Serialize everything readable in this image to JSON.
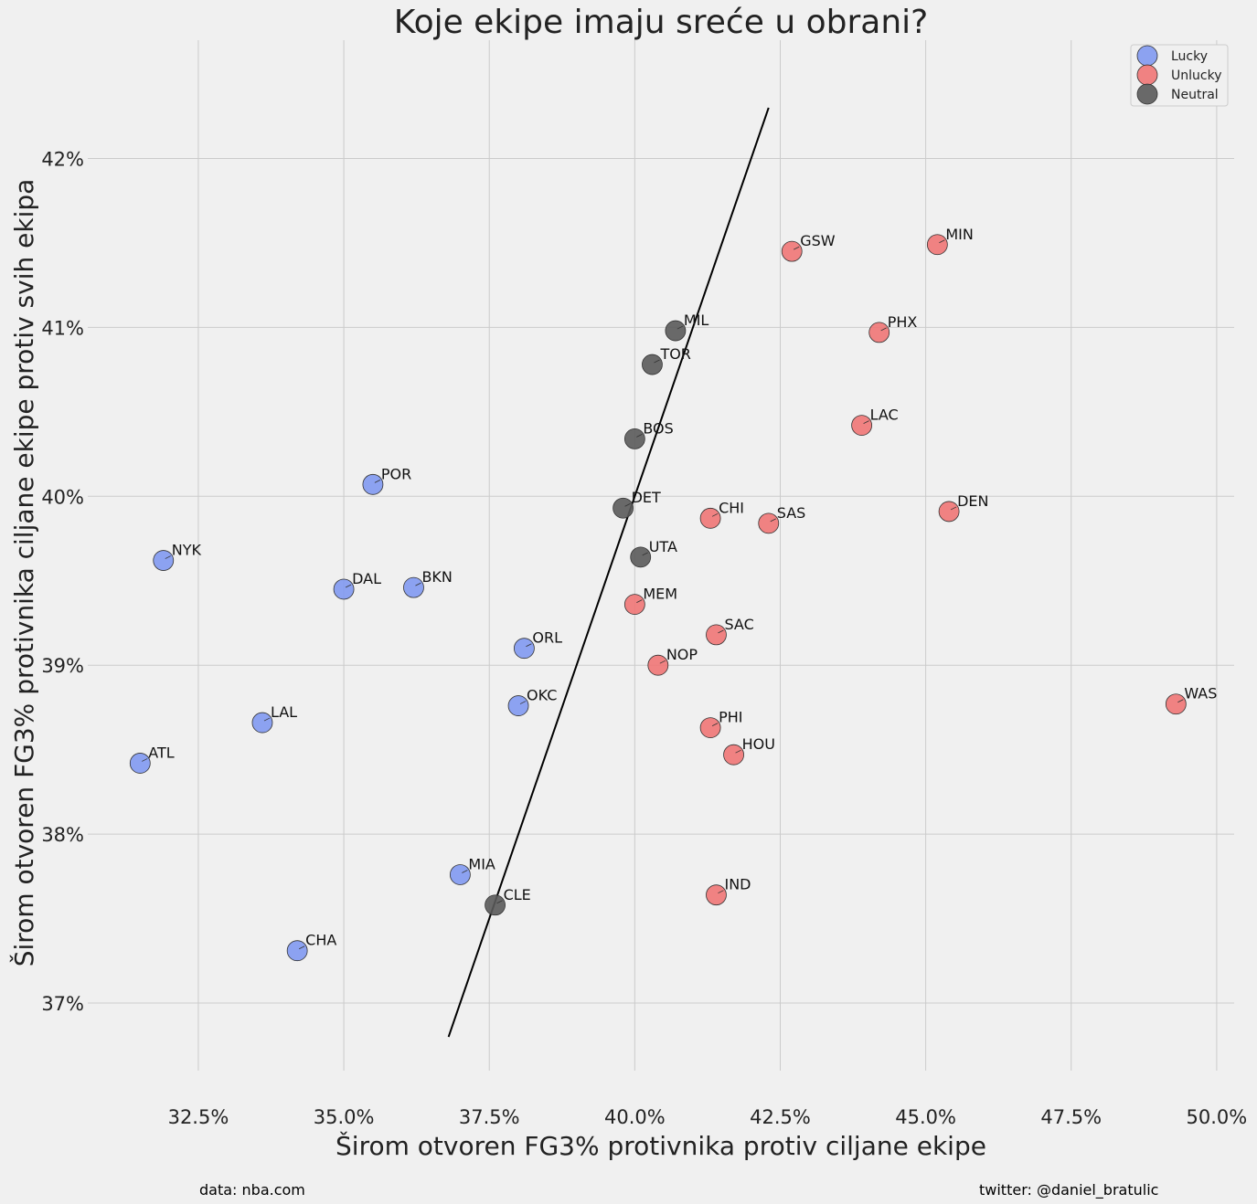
{
  "chart_data": {
    "type": "scatter",
    "title": "Koje ekipe imaju sreće u obrani?",
    "xlabel": "Širom otvoren FG3% protivnika protiv ciljane ekipe",
    "ylabel": "Širom otvoren FG3% protivnika ciljane ekipe protiv svih ekipa",
    "xlim": [
      30.6,
      50.3
    ],
    "ylim": [
      36.6,
      42.7
    ],
    "x_ticks": [
      32.5,
      35.0,
      37.5,
      40.0,
      42.5,
      45.0,
      47.5,
      50.0
    ],
    "x_tick_labels": [
      "32.5%",
      "35.0%",
      "37.5%",
      "40.0%",
      "42.5%",
      "45.0%",
      "47.5%",
      "50.0%"
    ],
    "y_ticks": [
      37,
      38,
      39,
      40,
      41,
      42
    ],
    "y_tick_labels": [
      "37%",
      "38%",
      "39%",
      "40%",
      "41%",
      "42%"
    ],
    "grid": true,
    "legend_position": "top-right",
    "reference_line": {
      "x": [
        36.8,
        42.3
      ],
      "y": [
        36.8,
        42.3
      ]
    },
    "series": [
      {
        "name": "Lucky",
        "color": "#8199f1",
        "points": [
          {
            "label": "NYK",
            "x": 31.9,
            "y": 39.62
          },
          {
            "label": "ATL",
            "x": 31.5,
            "y": 38.42
          },
          {
            "label": "LAL",
            "x": 33.6,
            "y": 38.66
          },
          {
            "label": "CHA",
            "x": 34.2,
            "y": 37.31
          },
          {
            "label": "DAL",
            "x": 35.0,
            "y": 39.45
          },
          {
            "label": "POR",
            "x": 35.5,
            "y": 40.07
          },
          {
            "label": "BKN",
            "x": 36.2,
            "y": 39.46
          },
          {
            "label": "MIA",
            "x": 37.0,
            "y": 37.76
          },
          {
            "label": "ORL",
            "x": 38.1,
            "y": 39.1
          },
          {
            "label": "OKC",
            "x": 38.0,
            "y": 38.76
          }
        ]
      },
      {
        "name": "Unlucky",
        "color": "#f07575",
        "points": [
          {
            "label": "GSW",
            "x": 42.7,
            "y": 41.45
          },
          {
            "label": "MIN",
            "x": 45.2,
            "y": 41.49
          },
          {
            "label": "PHX",
            "x": 44.2,
            "y": 40.97
          },
          {
            "label": "LAC",
            "x": 43.9,
            "y": 40.42
          },
          {
            "label": "DEN",
            "x": 45.4,
            "y": 39.91
          },
          {
            "label": "CHI",
            "x": 41.3,
            "y": 39.87
          },
          {
            "label": "SAS",
            "x": 42.3,
            "y": 39.84
          },
          {
            "label": "MEM",
            "x": 40.0,
            "y": 39.36
          },
          {
            "label": "SAC",
            "x": 41.4,
            "y": 39.18
          },
          {
            "label": "NOP",
            "x": 40.4,
            "y": 39.0
          },
          {
            "label": "WAS",
            "x": 49.3,
            "y": 38.77
          },
          {
            "label": "PHI",
            "x": 41.3,
            "y": 38.63
          },
          {
            "label": "HOU",
            "x": 41.7,
            "y": 38.47
          },
          {
            "label": "IND",
            "x": 41.4,
            "y": 37.64
          }
        ]
      },
      {
        "name": "Neutral",
        "color": "#5a5a5a",
        "points": [
          {
            "label": "MIL",
            "x": 40.7,
            "y": 40.98
          },
          {
            "label": "TOR",
            "x": 40.3,
            "y": 40.78
          },
          {
            "label": "BOS",
            "x": 40.0,
            "y": 40.34
          },
          {
            "label": "DET",
            "x": 39.8,
            "y": 39.93
          },
          {
            "label": "UTA",
            "x": 40.1,
            "y": 39.64
          },
          {
            "label": "CLE",
            "x": 37.6,
            "y": 37.58
          }
        ]
      }
    ]
  },
  "footer": {
    "source": "data: nba.com",
    "credit": "twitter: @daniel_bratulic"
  }
}
